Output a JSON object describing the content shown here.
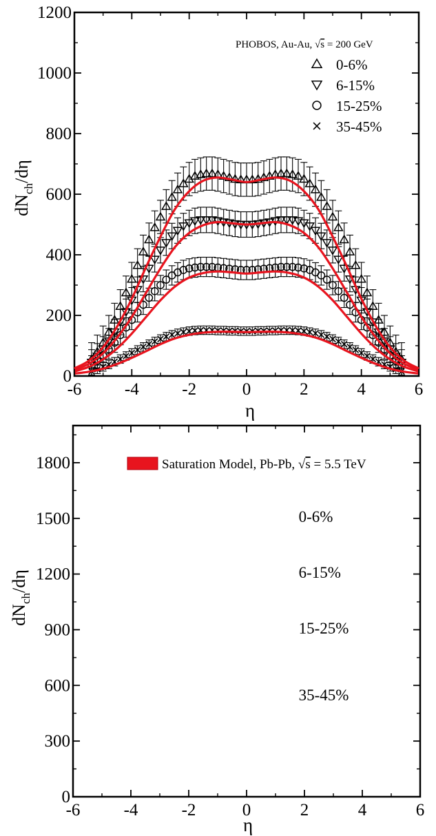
{
  "chart_data": [
    {
      "type": "scatter",
      "title": "",
      "xlabel": "η",
      "ylabel_main": "dN",
      "ylabel_sub": "ch",
      "ylabel_tail": "/dη",
      "xlim": [
        -6,
        6
      ],
      "ylim": [
        0,
        1200
      ],
      "xticks": [
        "-6",
        "-4",
        "-2",
        "0",
        "2",
        "4",
        "6"
      ],
      "yticks": [
        "0",
        "200",
        "400",
        "600",
        "800",
        "1000",
        "1200"
      ],
      "legend_position": "top-right",
      "legend_header": {
        "main": "PHOBOS, Au-Au, ",
        "sqrt": "s",
        "tail": " = 200 GeV"
      },
      "curve_color": "#e8141e",
      "series": [
        {
          "name": "0-6%",
          "marker": "triangle-up",
          "error": 55,
          "x": [
            -5.4,
            -5.2,
            -5.0,
            -4.8,
            -4.6,
            -4.4,
            -4.2,
            -4.0,
            -3.8,
            -3.6,
            -3.4,
            -3.2,
            -3.0,
            -2.8,
            -2.6,
            -2.4,
            -2.2,
            -2.0,
            -1.8,
            -1.6,
            -1.4,
            -1.2,
            -1.0,
            -0.8,
            -0.6,
            -0.4,
            -0.2,
            0.0,
            0.2,
            0.4,
            0.6,
            0.8,
            1.0,
            1.2,
            1.4,
            1.6,
            1.8,
            2.0,
            2.2,
            2.4,
            2.6,
            2.8,
            3.0,
            3.2,
            3.4,
            3.6,
            3.8,
            4.0,
            4.2,
            4.4,
            4.6,
            4.8,
            5.0,
            5.2,
            5.4
          ],
          "y": [
            55,
            80,
            110,
            145,
            185,
            230,
            275,
            320,
            365,
            410,
            450,
            490,
            525,
            560,
            590,
            615,
            635,
            650,
            660,
            665,
            668,
            668,
            665,
            660,
            655,
            650,
            648,
            648,
            648,
            650,
            655,
            660,
            665,
            668,
            668,
            665,
            660,
            650,
            635,
            615,
            590,
            560,
            525,
            490,
            450,
            410,
            365,
            320,
            275,
            230,
            185,
            145,
            110,
            80,
            55
          ],
          "fit": [
            [
              -6,
              25
            ],
            [
              -5.5,
              50
            ],
            [
              -5,
              95
            ],
            [
              -4.5,
              165
            ],
            [
              -4,
              255
            ],
            [
              -3.5,
              360
            ],
            [
              -3,
              460
            ],
            [
              -2.5,
              550
            ],
            [
              -2,
              610
            ],
            [
              -1.5,
              645
            ],
            [
              -1,
              655
            ],
            [
              -0.5,
              648
            ],
            [
              0,
              640
            ],
            [
              0.5,
              648
            ],
            [
              1,
              655
            ],
            [
              1.5,
              645
            ],
            [
              2,
              610
            ],
            [
              2.5,
              550
            ],
            [
              3,
              460
            ],
            [
              3.5,
              360
            ],
            [
              4,
              255
            ],
            [
              4.5,
              165
            ],
            [
              5,
              95
            ],
            [
              5.5,
              50
            ],
            [
              6,
              25
            ]
          ]
        },
        {
          "name": "6-15%",
          "marker": "triangle-down",
          "error": 42,
          "x": [
            -5.4,
            -5.2,
            -5.0,
            -4.8,
            -4.6,
            -4.4,
            -4.2,
            -4.0,
            -3.8,
            -3.6,
            -3.4,
            -3.2,
            -3.0,
            -2.8,
            -2.6,
            -2.4,
            -2.2,
            -2.0,
            -1.8,
            -1.6,
            -1.4,
            -1.2,
            -1.0,
            -0.8,
            -0.6,
            -0.4,
            -0.2,
            0.0,
            0.2,
            0.4,
            0.6,
            0.8,
            1.0,
            1.2,
            1.4,
            1.6,
            1.8,
            2.0,
            2.2,
            2.4,
            2.6,
            2.8,
            3.0,
            3.2,
            3.4,
            3.6,
            3.8,
            4.0,
            4.2,
            4.4,
            4.6,
            4.8,
            5.0,
            5.2,
            5.4
          ],
          "y": [
            45,
            65,
            88,
            115,
            145,
            178,
            212,
            250,
            285,
            320,
            355,
            385,
            415,
            440,
            462,
            480,
            495,
            505,
            512,
            515,
            515,
            515,
            512,
            508,
            505,
            502,
            500,
            500,
            500,
            502,
            505,
            508,
            512,
            515,
            515,
            515,
            512,
            505,
            495,
            480,
            462,
            440,
            415,
            385,
            355,
            320,
            285,
            250,
            212,
            178,
            145,
            115,
            88,
            65,
            45
          ],
          "fit": [
            [
              -6,
              20
            ],
            [
              -5.5,
              40
            ],
            [
              -5,
              75
            ],
            [
              -4.5,
              128
            ],
            [
              -4,
              195
            ],
            [
              -3.5,
              275
            ],
            [
              -3,
              355
            ],
            [
              -2.5,
              425
            ],
            [
              -2,
              472
            ],
            [
              -1.5,
              498
            ],
            [
              -1,
              508
            ],
            [
              -0.5,
              504
            ],
            [
              0,
              500
            ],
            [
              0.5,
              504
            ],
            [
              1,
              508
            ],
            [
              1.5,
              498
            ],
            [
              2,
              472
            ],
            [
              2.5,
              425
            ],
            [
              3,
              355
            ],
            [
              3.5,
              275
            ],
            [
              4,
              195
            ],
            [
              4.5,
              128
            ],
            [
              5,
              75
            ],
            [
              5.5,
              40
            ],
            [
              6,
              20
            ]
          ]
        },
        {
          "name": "15-25%",
          "marker": "circle",
          "error": 32,
          "x": [
            -5.4,
            -5.2,
            -5.0,
            -4.8,
            -4.6,
            -4.4,
            -4.2,
            -4.0,
            -3.8,
            -3.6,
            -3.4,
            -3.2,
            -3.0,
            -2.8,
            -2.6,
            -2.4,
            -2.2,
            -2.0,
            -1.8,
            -1.6,
            -1.4,
            -1.2,
            -1.0,
            -0.8,
            -0.6,
            -0.4,
            -0.2,
            0.0,
            0.2,
            0.4,
            0.6,
            0.8,
            1.0,
            1.2,
            1.4,
            1.6,
            1.8,
            2.0,
            2.2,
            2.4,
            2.6,
            2.8,
            3.0,
            3.2,
            3.4,
            3.6,
            3.8,
            4.0,
            4.2,
            4.4,
            4.6,
            4.8,
            5.0,
            5.2,
            5.4
          ],
          "y": [
            35,
            50,
            68,
            88,
            110,
            135,
            160,
            185,
            210,
            235,
            258,
            280,
            300,
            318,
            332,
            342,
            350,
            355,
            358,
            360,
            360,
            360,
            358,
            356,
            354,
            352,
            350,
            350,
            350,
            352,
            354,
            356,
            358,
            360,
            360,
            360,
            358,
            355,
            350,
            342,
            332,
            318,
            300,
            280,
            258,
            235,
            210,
            185,
            160,
            135,
            110,
            88,
            68,
            50,
            35
          ],
          "fit": [
            [
              -6,
              15
            ],
            [
              -5.5,
              30
            ],
            [
              -5,
              55
            ],
            [
              -4.5,
              92
            ],
            [
              -4,
              140
            ],
            [
              -3.5,
              195
            ],
            [
              -3,
              250
            ],
            [
              -2.5,
              295
            ],
            [
              -2,
              325
            ],
            [
              -1.5,
              340
            ],
            [
              -1,
              345
            ],
            [
              -0.5,
              342
            ],
            [
              0,
              338
            ],
            [
              0.5,
              342
            ],
            [
              1,
              345
            ],
            [
              1.5,
              340
            ],
            [
              2,
              325
            ],
            [
              2.5,
              295
            ],
            [
              3,
              250
            ],
            [
              3.5,
              195
            ],
            [
              4,
              140
            ],
            [
              4.5,
              92
            ],
            [
              5,
              55
            ],
            [
              5.5,
              30
            ],
            [
              6,
              15
            ]
          ]
        },
        {
          "name": "35-45%",
          "marker": "cross",
          "error": 14,
          "x": [
            -5.4,
            -5.2,
            -5.0,
            -4.8,
            -4.6,
            -4.4,
            -4.2,
            -4.0,
            -3.8,
            -3.6,
            -3.4,
            -3.2,
            -3.0,
            -2.8,
            -2.6,
            -2.4,
            -2.2,
            -2.0,
            -1.8,
            -1.6,
            -1.4,
            -1.2,
            -1.0,
            -0.8,
            -0.6,
            -0.4,
            -0.2,
            0.0,
            0.2,
            0.4,
            0.6,
            0.8,
            1.0,
            1.2,
            1.4,
            1.6,
            1.8,
            2.0,
            2.2,
            2.4,
            2.6,
            2.8,
            3.0,
            3.2,
            3.4,
            3.6,
            3.8,
            4.0,
            4.2,
            4.4,
            4.6,
            4.8,
            5.0,
            5.2,
            5.4
          ],
          "y": [
            15,
            22,
            30,
            38,
            47,
            56,
            66,
            76,
            86,
            96,
            105,
            114,
            122,
            130,
            136,
            141,
            145,
            148,
            150,
            151,
            151,
            151,
            150,
            150,
            149,
            149,
            148,
            148,
            148,
            149,
            149,
            150,
            150,
            151,
            151,
            151,
            150,
            148,
            145,
            141,
            136,
            130,
            122,
            114,
            105,
            96,
            86,
            76,
            66,
            56,
            47,
            38,
            30,
            22,
            15
          ],
          "fit": [
            [
              -6,
              8
            ],
            [
              -5.5,
              14
            ],
            [
              -5,
              24
            ],
            [
              -4.5,
              40
            ],
            [
              -4,
              60
            ],
            [
              -3.5,
              82
            ],
            [
              -3,
              105
            ],
            [
              -2.5,
              124
            ],
            [
              -2,
              136
            ],
            [
              -1.5,
              143
            ],
            [
              -1,
              146
            ],
            [
              -0.5,
              146
            ],
            [
              0,
              145
            ],
            [
              0.5,
              146
            ],
            [
              1,
              146
            ],
            [
              1.5,
              143
            ],
            [
              2,
              136
            ],
            [
              2.5,
              124
            ],
            [
              3,
              105
            ],
            [
              3.5,
              82
            ],
            [
              4,
              60
            ],
            [
              4.5,
              40
            ],
            [
              5,
              24
            ],
            [
              5.5,
              14
            ],
            [
              6,
              8
            ]
          ]
        }
      ]
    },
    {
      "type": "line",
      "title": "",
      "xlabel": "η",
      "ylabel_main": "dN",
      "ylabel_sub": "ch",
      "ylabel_tail": "/dη",
      "xlim": [
        -6,
        6
      ],
      "ylim": [
        0,
        2000
      ],
      "xticks": [
        "-6",
        "-4",
        "-2",
        "0",
        "2",
        "4",
        "6"
      ],
      "yticks": [
        "0",
        "300",
        "600",
        "900",
        "1200",
        "1500",
        "1800"
      ],
      "legend_position": "top-right",
      "legend_entry": {
        "main": "Saturation Model, Pb-Pb, ",
        "sqrt": "s",
        "tail": " = 5.5 TeV",
        "color": "#e8141e"
      },
      "annotations": [
        {
          "text": "0-6%",
          "x": 1.8,
          "y": 1480
        },
        {
          "text": "6-15%",
          "x": 1.8,
          "y": 1180
        },
        {
          "text": "15-25%",
          "x": 1.8,
          "y": 880
        },
        {
          "text": "35-45%",
          "x": 1.8,
          "y": 520
        }
      ],
      "series": []
    }
  ]
}
